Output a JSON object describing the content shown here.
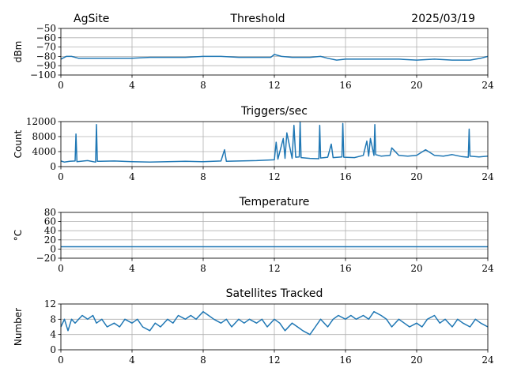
{
  "header": {
    "left": "AgSite",
    "center": "Threshold",
    "right": "2025/03/19"
  },
  "colors": {
    "series": "#1f77b4",
    "grid": "#b0b0b0",
    "axes": "#000000"
  },
  "chart_data": [
    {
      "type": "line",
      "title": "",
      "xlabel": "",
      "ylabel": "dBm",
      "xlim": [
        0,
        24
      ],
      "ylim": [
        -100,
        -50
      ],
      "xticks": [
        0,
        4,
        8,
        12,
        16,
        20,
        24
      ],
      "yticks": [
        -100,
        -90,
        -80,
        -70,
        -60,
        -50
      ],
      "ytick_labels": [
        "−100",
        "−90",
        "−80",
        "−70",
        "−60",
        "−50"
      ],
      "grid": true,
      "series": [
        {
          "x": [
            0,
            0.3,
            0.6,
            1,
            2,
            3,
            4,
            5,
            6,
            7,
            8,
            9,
            10,
            11,
            11.8,
            12,
            12.4,
            13,
            14,
            14.6,
            15,
            15.5,
            16,
            17,
            18,
            19,
            20,
            21,
            22,
            23,
            23.6,
            24
          ],
          "y": [
            -83,
            -80,
            -80,
            -82,
            -82,
            -82,
            -82,
            -81,
            -81,
            -81,
            -80,
            -80,
            -81,
            -81,
            -81,
            -78,
            -80,
            -81,
            -81,
            -80,
            -82,
            -84,
            -83,
            -83,
            -83,
            -83,
            -84,
            -83,
            -84,
            -84,
            -82,
            -80
          ]
        }
      ]
    },
    {
      "type": "line",
      "title": "Triggers/sec",
      "xlabel": "",
      "ylabel": "Count",
      "xlim": [
        0,
        24
      ],
      "ylim": [
        0,
        12000
      ],
      "xticks": [
        0,
        4,
        8,
        12,
        16,
        20,
        24
      ],
      "yticks": [
        0,
        4000,
        8000,
        12000
      ],
      "ytick_labels": [
        "0",
        "4000",
        "8000",
        "12000"
      ],
      "grid": true,
      "series": [
        {
          "x": [
            0,
            0.2,
            0.5,
            0.8,
            0.85,
            0.9,
            1.5,
            1.95,
            2.0,
            2.05,
            3,
            4,
            5,
            6,
            7,
            8,
            9,
            9.2,
            9.3,
            10,
            11,
            12,
            12.1,
            12.2,
            12.5,
            12.6,
            12.7,
            13,
            13.1,
            13.2,
            13.4,
            13.45,
            13.5,
            14,
            14.5,
            14.55,
            14.6,
            15,
            15.2,
            15.3,
            15.8,
            15.85,
            15.9,
            16.5,
            17,
            17.2,
            17.3,
            17.4,
            17.6,
            17.65,
            17.7,
            18,
            18.5,
            18.6,
            19,
            19.5,
            20,
            20.5,
            21,
            21.5,
            22,
            22.5,
            22.9,
            22.95,
            23.0,
            23.5,
            24
          ],
          "y": [
            1500,
            1200,
            1400,
            1500,
            8700,
            1300,
            1600,
            1200,
            11200,
            1400,
            1500,
            1300,
            1200,
            1300,
            1400,
            1300,
            1500,
            4500,
            1400,
            1500,
            1600,
            1800,
            6500,
            2000,
            7500,
            2200,
            9000,
            2200,
            11000,
            2500,
            2600,
            11800,
            2400,
            2200,
            2100,
            11000,
            2300,
            2500,
            6000,
            2400,
            2600,
            11500,
            2500,
            2400,
            3000,
            6800,
            2800,
            7500,
            3000,
            11200,
            3200,
            2800,
            3000,
            5000,
            3000,
            2800,
            3000,
            4500,
            3000,
            2800,
            3200,
            2700,
            2500,
            10000,
            2800,
            2600,
            2800
          ]
        }
      ]
    },
    {
      "type": "line",
      "title": "Temperature",
      "xlabel": "",
      "ylabel": "°C",
      "xlim": [
        0,
        24
      ],
      "ylim": [
        -20,
        80
      ],
      "xticks": [
        0,
        4,
        8,
        12,
        16,
        20,
        24
      ],
      "yticks": [
        -20,
        0,
        20,
        40,
        60,
        80
      ],
      "ytick_labels": [
        "−20",
        "0",
        "20",
        "40",
        "60",
        "80"
      ],
      "grid": true,
      "series": [
        {
          "x": [
            0,
            24
          ],
          "y": [
            5,
            5
          ]
        }
      ]
    },
    {
      "type": "line",
      "title": "Satellites Tracked",
      "xlabel": "",
      "ylabel": "Number",
      "xlim": [
        0,
        24
      ],
      "ylim": [
        0,
        12
      ],
      "xticks": [
        0,
        4,
        8,
        12,
        16,
        20,
        24
      ],
      "yticks": [
        0,
        4,
        8,
        12
      ],
      "ytick_labels": [
        "0",
        "4",
        "8",
        "12"
      ],
      "grid": true,
      "series": [
        {
          "x": [
            0,
            0.2,
            0.4,
            0.6,
            0.8,
            1,
            1.2,
            1.5,
            1.8,
            2,
            2.3,
            2.6,
            3,
            3.3,
            3.6,
            4,
            4.3,
            4.6,
            5,
            5.3,
            5.6,
            6,
            6.3,
            6.6,
            7,
            7.3,
            7.6,
            8,
            8.3,
            8.6,
            9,
            9.3,
            9.6,
            10,
            10.3,
            10.6,
            11,
            11.3,
            11.6,
            12,
            12.3,
            12.6,
            13,
            13.3,
            13.6,
            14,
            14.3,
            14.6,
            15,
            15.3,
            15.6,
            16,
            16.3,
            16.6,
            17,
            17.3,
            17.6,
            18,
            18.3,
            18.6,
            19,
            19.3,
            19.6,
            20,
            20.3,
            20.6,
            21,
            21.3,
            21.6,
            22,
            22.3,
            22.6,
            23,
            23.3,
            23.6,
            24
          ],
          "y": [
            6,
            8,
            5,
            8,
            7,
            8,
            9,
            8,
            9,
            7,
            8,
            6,
            7,
            6,
            8,
            7,
            8,
            6,
            5,
            7,
            6,
            8,
            7,
            9,
            8,
            9,
            8,
            10,
            9,
            8,
            7,
            8,
            6,
            8,
            7,
            8,
            7,
            8,
            6,
            8,
            7,
            5,
            7,
            6,
            5,
            4,
            6,
            8,
            6,
            8,
            9,
            8,
            9,
            8,
            9,
            8,
            10,
            9,
            8,
            6,
            8,
            7,
            6,
            7,
            6,
            8,
            9,
            7,
            8,
            6,
            8,
            7,
            6,
            8,
            7,
            6
          ]
        }
      ]
    }
  ]
}
